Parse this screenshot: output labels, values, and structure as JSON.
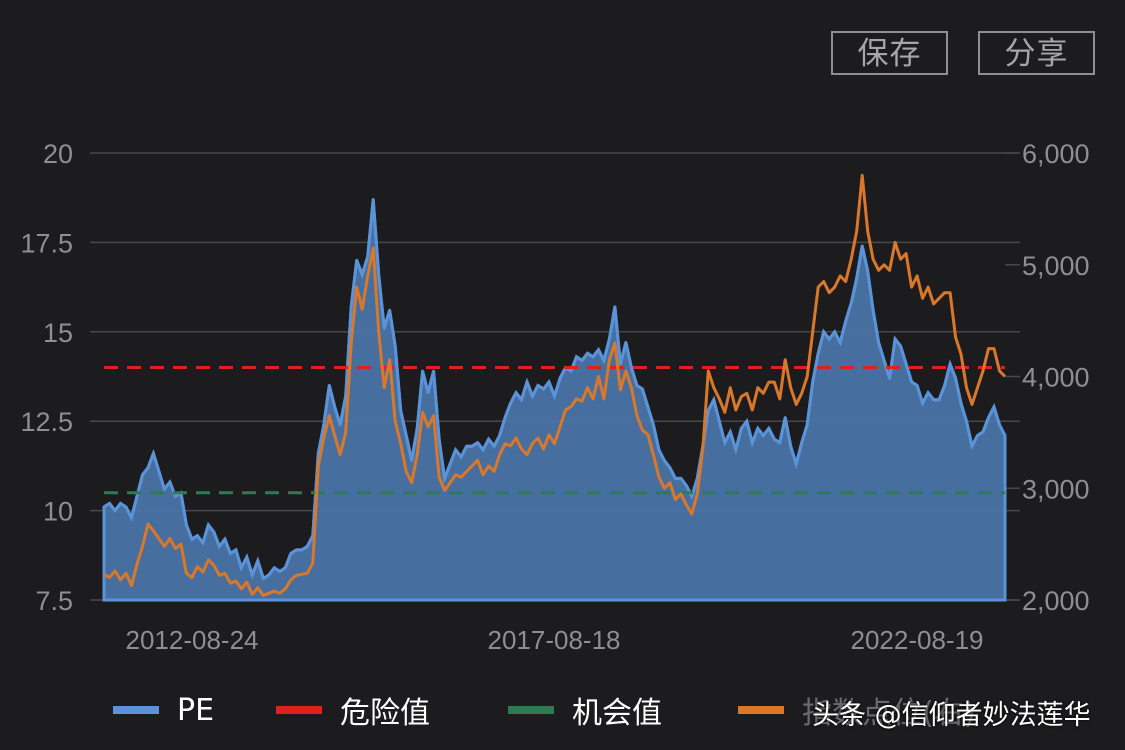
{
  "toolbar": {
    "save_label": "保存",
    "share_label": "分享"
  },
  "watermark": "头条 @信仰者妙法莲华",
  "colors": {
    "background": "#1c1c1e",
    "pe": "#5b93d9",
    "pe_fill": "#4a75aa",
    "danger": "#e0201c",
    "opportunity": "#2f7a52",
    "index": "#d9782a",
    "grid": "#48484a",
    "axis_text": "#8e8e93"
  },
  "chart_data": {
    "type": "line",
    "title": "",
    "xlabel": "",
    "ylabel_left": "PE",
    "ylabel_right": "指数点位",
    "x_tick_labels": [
      "2012-08-24",
      "2017-08-18",
      "2022-08-19"
    ],
    "y_left": {
      "ticks": [
        "7.5",
        "10",
        "12.5",
        "15",
        "17.5",
        "20"
      ],
      "range": [
        7.5,
        20
      ]
    },
    "y_right": {
      "ticks": [
        "2,000",
        "3,000",
        "4,000",
        "5,000",
        "6,000"
      ],
      "range": [
        2000,
        6000
      ]
    },
    "grid": true,
    "legend_position": "bottom",
    "legend": [
      "PE",
      "危险值",
      "机会值",
      "指数点位(右)"
    ],
    "reference_lines": [
      {
        "name": "危险值",
        "axis": "left",
        "value": 14.0,
        "style": "dashed",
        "color": "#e0201c"
      },
      {
        "name": "机会值",
        "axis": "left",
        "value": 10.5,
        "style": "dashed",
        "color": "#2f7a52"
      }
    ],
    "x_start": "2012-05",
    "x_end": "2023-08",
    "series": [
      {
        "name": "PE",
        "axis": "left",
        "style": "area",
        "values": [
          10.1,
          10.2,
          10.0,
          10.2,
          10.1,
          9.8,
          10.4,
          11.0,
          11.2,
          11.6,
          11.1,
          10.6,
          10.8,
          10.4,
          10.5,
          9.6,
          9.2,
          9.3,
          9.1,
          9.6,
          9.4,
          9.0,
          9.2,
          8.8,
          8.9,
          8.4,
          8.7,
          8.2,
          8.6,
          8.1,
          8.2,
          8.4,
          8.3,
          8.4,
          8.8,
          8.9,
          8.9,
          9.0,
          9.3,
          11.6,
          12.4,
          13.5,
          12.9,
          12.4,
          13.2,
          15.7,
          17.0,
          16.6,
          17.1,
          18.7,
          16.6,
          15.1,
          15.6,
          14.6,
          12.8,
          12.1,
          11.4,
          12.3,
          13.9,
          13.3,
          13.9,
          12.0,
          10.9,
          11.3,
          11.7,
          11.5,
          11.8,
          11.8,
          11.9,
          11.7,
          12.0,
          11.8,
          12.1,
          12.6,
          13.0,
          13.3,
          13.1,
          13.6,
          13.2,
          13.5,
          13.4,
          13.6,
          13.2,
          13.7,
          14.0,
          13.9,
          14.3,
          14.2,
          14.4,
          14.3,
          14.5,
          14.2,
          14.8,
          15.7,
          14.1,
          14.7,
          14.0,
          13.5,
          13.4,
          12.9,
          12.4,
          11.7,
          11.4,
          11.2,
          10.9,
          10.9,
          10.7,
          10.4,
          10.9,
          11.8,
          12.8,
          13.1,
          12.5,
          11.9,
          12.2,
          11.7,
          12.3,
          12.5,
          11.9,
          12.3,
          12.1,
          12.3,
          12.0,
          11.9,
          12.6,
          11.8,
          11.3,
          11.9,
          12.4,
          13.6,
          14.4,
          15.0,
          14.8,
          15.0,
          14.7,
          15.3,
          15.8,
          16.5,
          17.4,
          16.7,
          15.6,
          14.7,
          14.2,
          13.7,
          14.8,
          14.6,
          14.1,
          13.6,
          13.5,
          13.0,
          13.3,
          13.1,
          13.1,
          13.5,
          14.1,
          13.7,
          13.0,
          12.5,
          11.8,
          12.1,
          12.2,
          12.6,
          12.9,
          12.4,
          12.1
        ]
      },
      {
        "name": "指数点位(右)",
        "axis": "right",
        "style": "line",
        "values": [
          2230,
          2200,
          2260,
          2180,
          2240,
          2130,
          2320,
          2480,
          2680,
          2620,
          2550,
          2480,
          2550,
          2460,
          2500,
          2240,
          2200,
          2300,
          2250,
          2360,
          2310,
          2220,
          2240,
          2150,
          2170,
          2100,
          2160,
          2050,
          2110,
          2040,
          2060,
          2080,
          2060,
          2100,
          2180,
          2220,
          2230,
          2240,
          2330,
          3200,
          3450,
          3650,
          3470,
          3300,
          3500,
          4300,
          4800,
          4600,
          4900,
          5150,
          4400,
          3900,
          4150,
          3600,
          3400,
          3150,
          3050,
          3300,
          3680,
          3550,
          3650,
          3100,
          2980,
          3050,
          3120,
          3100,
          3150,
          3200,
          3250,
          3120,
          3200,
          3150,
          3300,
          3400,
          3380,
          3450,
          3350,
          3300,
          3400,
          3450,
          3350,
          3480,
          3400,
          3550,
          3700,
          3730,
          3800,
          3780,
          3900,
          3800,
          4000,
          3800,
          4150,
          4300,
          3880,
          4050,
          3900,
          3650,
          3520,
          3480,
          3300,
          3100,
          3000,
          3050,
          2900,
          2950,
          2850,
          2770,
          2950,
          3350,
          4050,
          3900,
          3800,
          3680,
          3900,
          3700,
          3820,
          3850,
          3700,
          3900,
          3850,
          3950,
          3950,
          3800,
          4150,
          3900,
          3750,
          3850,
          4000,
          4400,
          4800,
          4850,
          4750,
          4800,
          4900,
          4850,
          5050,
          5300,
          5800,
          5300,
          5050,
          4950,
          5000,
          4950,
          5200,
          5050,
          5100,
          4800,
          4900,
          4700,
          4800,
          4650,
          4700,
          4750,
          4750,
          4350,
          4200,
          3900,
          3750,
          3900,
          4050,
          4250,
          4250,
          4050,
          4000
        ]
      }
    ]
  }
}
